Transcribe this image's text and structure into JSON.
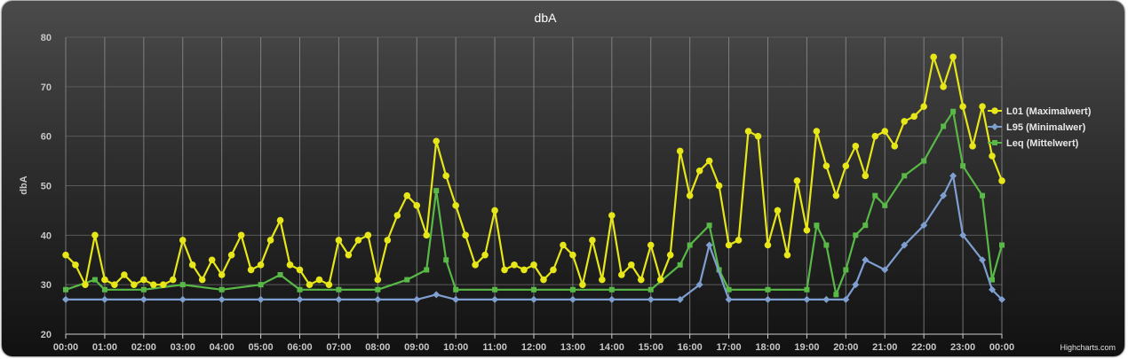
{
  "chart_data": {
    "type": "line",
    "title": "dbA",
    "ylabel": "dbA",
    "xlabel": "",
    "ylim": [
      20,
      80
    ],
    "yticks": [
      20,
      30,
      40,
      50,
      60,
      70,
      80
    ],
    "x_start": "00:00",
    "x_end": "00:00",
    "x_tick_labels": [
      "00:00",
      "01:00",
      "02:00",
      "03:00",
      "04:00",
      "05:00",
      "06:00",
      "07:00",
      "08:00",
      "09:00",
      "10:00",
      "11:00",
      "12:00",
      "13:00",
      "14:00",
      "15:00",
      "16:00",
      "17:00",
      "18:00",
      "19:00",
      "20:00",
      "21:00",
      "22:00",
      "23:00",
      "00:00"
    ],
    "grid": true,
    "legend_position": "right",
    "credits": "Highcharts.com",
    "series": [
      {
        "name": "L01 (Maximalwert)",
        "color": "#e6e619",
        "marker": "circle",
        "points": [
          [
            "00:00",
            36
          ],
          [
            "00:15",
            34
          ],
          [
            "00:30",
            30
          ],
          [
            "00:45",
            40
          ],
          [
            "01:00",
            31
          ],
          [
            "01:15",
            30
          ],
          [
            "01:30",
            32
          ],
          [
            "01:45",
            30
          ],
          [
            "02:00",
            31
          ],
          [
            "02:15",
            30
          ],
          [
            "02:30",
            30
          ],
          [
            "02:45",
            31
          ],
          [
            "03:00",
            39
          ],
          [
            "03:15",
            34
          ],
          [
            "03:30",
            31
          ],
          [
            "03:45",
            35
          ],
          [
            "04:00",
            32
          ],
          [
            "04:15",
            36
          ],
          [
            "04:30",
            40
          ],
          [
            "04:45",
            33
          ],
          [
            "05:00",
            34
          ],
          [
            "05:15",
            39
          ],
          [
            "05:30",
            43
          ],
          [
            "05:45",
            34
          ],
          [
            "06:00",
            33
          ],
          [
            "06:15",
            30
          ],
          [
            "06:30",
            31
          ],
          [
            "06:45",
            30
          ],
          [
            "07:00",
            39
          ],
          [
            "07:15",
            36
          ],
          [
            "07:30",
            39
          ],
          [
            "07:45",
            40
          ],
          [
            "08:00",
            31
          ],
          [
            "08:15",
            39
          ],
          [
            "08:30",
            44
          ],
          [
            "08:45",
            48
          ],
          [
            "09:00",
            46
          ],
          [
            "09:15",
            40
          ],
          [
            "09:30",
            59
          ],
          [
            "09:45",
            52
          ],
          [
            "10:00",
            46
          ],
          [
            "10:15",
            40
          ],
          [
            "10:30",
            34
          ],
          [
            "10:45",
            36
          ],
          [
            "11:00",
            45
          ],
          [
            "11:15",
            33
          ],
          [
            "11:30",
            34
          ],
          [
            "11:45",
            33
          ],
          [
            "12:00",
            34
          ],
          [
            "12:15",
            31
          ],
          [
            "12:30",
            33
          ],
          [
            "12:45",
            38
          ],
          [
            "13:00",
            36
          ],
          [
            "13:15",
            30
          ],
          [
            "13:30",
            39
          ],
          [
            "13:45",
            31
          ],
          [
            "14:00",
            44
          ],
          [
            "14:15",
            32
          ],
          [
            "14:30",
            34
          ],
          [
            "14:45",
            31
          ],
          [
            "15:00",
            38
          ],
          [
            "15:15",
            31
          ],
          [
            "15:30",
            36
          ],
          [
            "15:45",
            57
          ],
          [
            "16:00",
            48
          ],
          [
            "16:15",
            53
          ],
          [
            "16:30",
            55
          ],
          [
            "16:45",
            50
          ],
          [
            "17:00",
            38
          ],
          [
            "17:15",
            39
          ],
          [
            "17:30",
            61
          ],
          [
            "17:45",
            60
          ],
          [
            "18:00",
            38
          ],
          [
            "18:15",
            45
          ],
          [
            "18:30",
            36
          ],
          [
            "18:45",
            51
          ],
          [
            "19:00",
            41
          ],
          [
            "19:15",
            61
          ],
          [
            "19:30",
            54
          ],
          [
            "19:45",
            48
          ],
          [
            "20:00",
            54
          ],
          [
            "20:15",
            58
          ],
          [
            "20:30",
            52
          ],
          [
            "20:45",
            60
          ],
          [
            "21:00",
            61
          ],
          [
            "21:15",
            58
          ],
          [
            "21:30",
            63
          ],
          [
            "21:45",
            64
          ],
          [
            "22:00",
            66
          ],
          [
            "22:15",
            76
          ],
          [
            "22:30",
            70
          ],
          [
            "22:45",
            76
          ],
          [
            "23:00",
            66
          ],
          [
            "23:15",
            58
          ],
          [
            "23:30",
            66
          ],
          [
            "23:45",
            56
          ],
          [
            "00:00",
            51
          ]
        ]
      },
      {
        "name": "L95 (Minimalwer)",
        "color": "#7f9fd1",
        "marker": "diamond",
        "points": [
          [
            "00:00",
            27
          ],
          [
            "01:00",
            27
          ],
          [
            "02:00",
            27
          ],
          [
            "03:00",
            27
          ],
          [
            "04:00",
            27
          ],
          [
            "05:00",
            27
          ],
          [
            "06:00",
            27
          ],
          [
            "07:00",
            27
          ],
          [
            "08:00",
            27
          ],
          [
            "09:00",
            27
          ],
          [
            "09:30",
            28
          ],
          [
            "10:00",
            27
          ],
          [
            "11:00",
            27
          ],
          [
            "12:00",
            27
          ],
          [
            "13:00",
            27
          ],
          [
            "14:00",
            27
          ],
          [
            "15:00",
            27
          ],
          [
            "15:45",
            27
          ],
          [
            "16:15",
            30
          ],
          [
            "16:30",
            38
          ],
          [
            "17:00",
            27
          ],
          [
            "18:00",
            27
          ],
          [
            "19:00",
            27
          ],
          [
            "19:30",
            27
          ],
          [
            "20:00",
            27
          ],
          [
            "20:15",
            30
          ],
          [
            "20:30",
            35
          ],
          [
            "21:00",
            33
          ],
          [
            "21:30",
            38
          ],
          [
            "22:00",
            42
          ],
          [
            "22:30",
            48
          ],
          [
            "22:45",
            52
          ],
          [
            "23:00",
            40
          ],
          [
            "23:30",
            35
          ],
          [
            "23:45",
            29
          ],
          [
            "00:00",
            27
          ]
        ]
      },
      {
        "name": "Leq (Mittelwert)",
        "color": "#58b947",
        "marker": "square",
        "points": [
          [
            "00:00",
            29
          ],
          [
            "00:45",
            31
          ],
          [
            "01:00",
            29
          ],
          [
            "02:00",
            29
          ],
          [
            "03:00",
            30
          ],
          [
            "04:00",
            29
          ],
          [
            "05:00",
            30
          ],
          [
            "05:30",
            32
          ],
          [
            "06:00",
            29
          ],
          [
            "07:00",
            29
          ],
          [
            "08:00",
            29
          ],
          [
            "08:45",
            31
          ],
          [
            "09:15",
            33
          ],
          [
            "09:30",
            49
          ],
          [
            "09:45",
            35
          ],
          [
            "10:00",
            29
          ],
          [
            "11:00",
            29
          ],
          [
            "12:00",
            29
          ],
          [
            "13:00",
            29
          ],
          [
            "14:00",
            29
          ],
          [
            "15:00",
            29
          ],
          [
            "15:45",
            34
          ],
          [
            "16:00",
            38
          ],
          [
            "16:30",
            42
          ],
          [
            "16:45",
            33
          ],
          [
            "17:00",
            29
          ],
          [
            "18:00",
            29
          ],
          [
            "19:00",
            29
          ],
          [
            "19:15",
            42
          ],
          [
            "19:30",
            38
          ],
          [
            "19:45",
            28
          ],
          [
            "20:00",
            33
          ],
          [
            "20:15",
            40
          ],
          [
            "20:30",
            42
          ],
          [
            "20:45",
            48
          ],
          [
            "21:00",
            46
          ],
          [
            "21:30",
            52
          ],
          [
            "22:00",
            55
          ],
          [
            "22:30",
            62
          ],
          [
            "22:45",
            65
          ],
          [
            "23:00",
            54
          ],
          [
            "23:30",
            48
          ],
          [
            "23:45",
            31
          ],
          [
            "00:00",
            38
          ]
        ]
      }
    ]
  }
}
